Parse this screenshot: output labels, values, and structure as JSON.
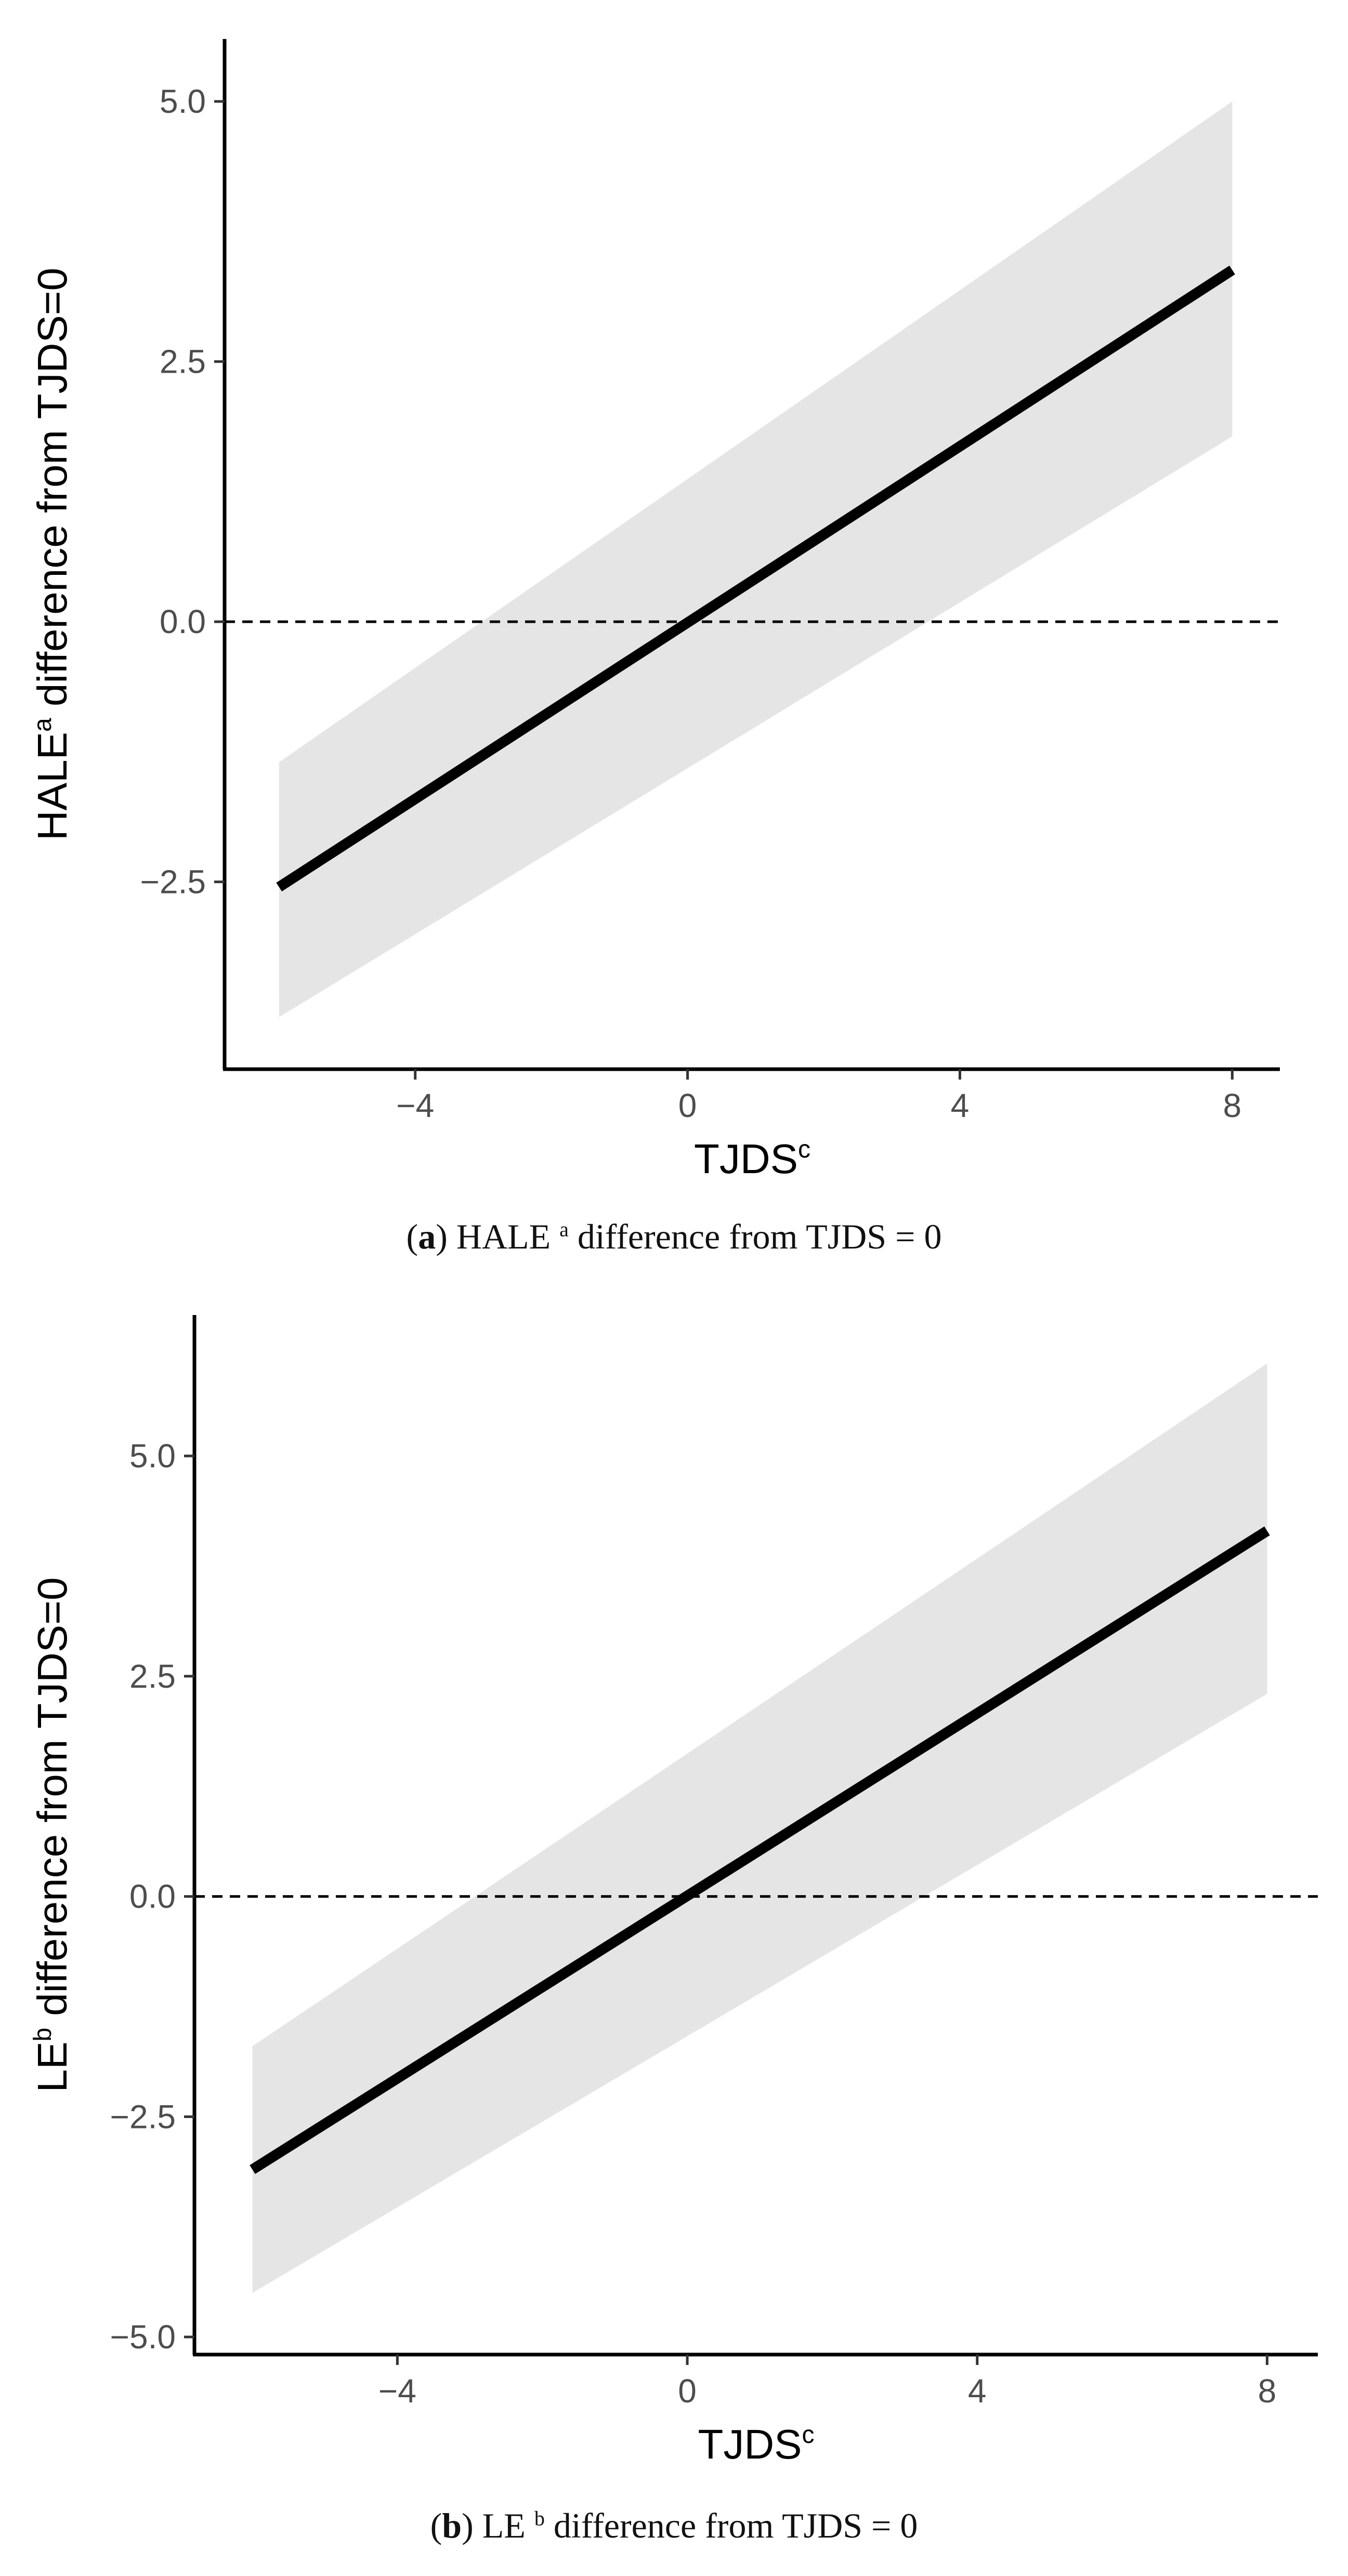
{
  "chart_data": [
    {
      "type": "line",
      "panel_label": "a",
      "caption_rest": "HALE",
      "caption_sup": "a",
      "caption_tail": "difference from TJDS = 0",
      "ylabel_main": "HALE",
      "ylabel_sup": "a",
      "ylabel_tail": " difference from TJDS=0",
      "xlabel_main": "TJDS",
      "xlabel_sup": "c",
      "xlim": [
        -6.8,
        8.7
      ],
      "ylim": [
        -4.3,
        5.6
      ],
      "xticks": [
        -4,
        0,
        4,
        8
      ],
      "xtick_labels": [
        "−4",
        "0",
        "4",
        "8"
      ],
      "yticks": [
        -2.5,
        0,
        2.5,
        5
      ],
      "ytick_labels": [
        "−2.5",
        "0.0",
        "2.5",
        "5.0"
      ],
      "reference_line_y": 0,
      "series": [
        {
          "name": "fit",
          "x": [
            -6,
            8
          ],
          "y": [
            -2.55,
            3.38
          ],
          "ci_lower": [
            -3.8,
            1.78
          ],
          "ci_upper": [
            -1.35,
            5.0
          ]
        }
      ],
      "colors": {
        "line": "#000000",
        "band": "#e5e5e5",
        "axis": "#000000"
      }
    },
    {
      "type": "line",
      "panel_label": "b",
      "caption_rest": "LE",
      "caption_sup": "b",
      "caption_tail": "difference from TJDS = 0",
      "ylabel_main": "LE",
      "ylabel_sup": "b",
      "ylabel_tail": " difference from TJDS=0",
      "xlabel_main": "TJDS",
      "xlabel_sup": "c",
      "xlim": [
        -6.8,
        8.7
      ],
      "ylim": [
        -5.2,
        6.6
      ],
      "xticks": [
        -4,
        0,
        4,
        8
      ],
      "xtick_labels": [
        "−4",
        "0",
        "4",
        "8"
      ],
      "yticks": [
        -5,
        -2.5,
        0,
        2.5,
        5
      ],
      "ytick_labels": [
        "−5.0",
        "−2.5",
        "0.0",
        "2.5",
        "5.0"
      ],
      "reference_line_y": 0,
      "series": [
        {
          "name": "fit",
          "x": [
            -6,
            8
          ],
          "y": [
            -3.1,
            4.15
          ],
          "ci_lower": [
            -4.5,
            2.3
          ],
          "ci_upper": [
            -1.7,
            6.05
          ]
        }
      ],
      "colors": {
        "line": "#000000",
        "band": "#e5e5e5",
        "axis": "#000000"
      }
    }
  ]
}
